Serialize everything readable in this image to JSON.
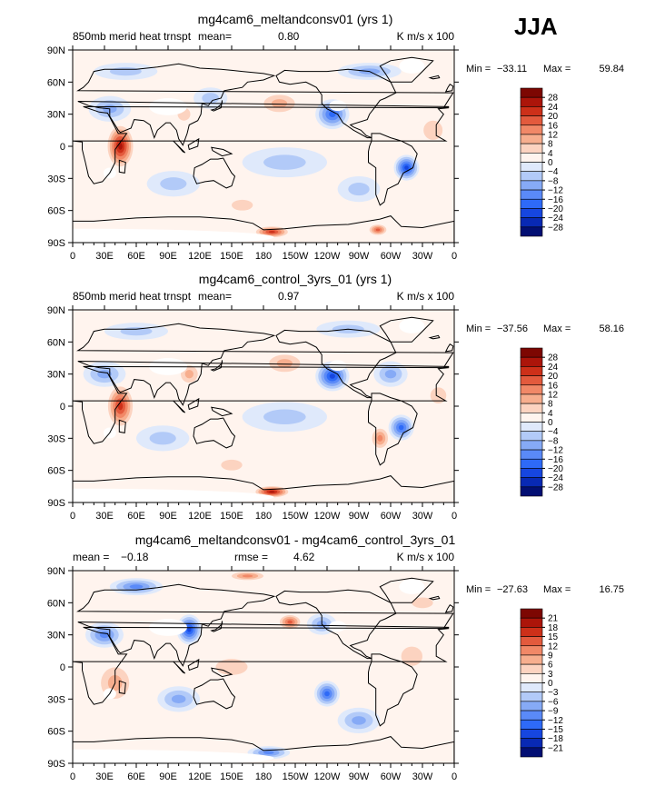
{
  "season": "JJA",
  "lon_ticks": [
    "0",
    "30E",
    "60E",
    "90E",
    "120E",
    "150E",
    "180",
    "150W",
    "120W",
    "90W",
    "60W",
    "30W",
    "0"
  ],
  "lat_ticks": [
    "90N",
    "60N",
    "30N",
    "0",
    "30S",
    "60S",
    "90S"
  ],
  "colors": {
    "standard": [
      "#020f73",
      "#0829b4",
      "#1646e0",
      "#2e6af7",
      "#5a8af8",
      "#86aaf6",
      "#b2caf8",
      "#dfe9fb",
      "#fff4ee",
      "#fcd3c0",
      "#f7ae8e",
      "#f18867",
      "#e35a3d",
      "#cd3019",
      "#ac150a",
      "#7d0702"
    ],
    "diff": [
      "#020f73",
      "#0829b4",
      "#1646e0",
      "#2e6af7",
      "#5a8af8",
      "#86aaf6",
      "#b2caf8",
      "#dfe9fb",
      "#fff4ee",
      "#fcd3c0",
      "#f7ae8e",
      "#f18867",
      "#e35a3d",
      "#cd3019",
      "#ac150a",
      "#7d0702"
    ]
  },
  "chart_data": [
    {
      "type": "heatmap",
      "title": "mg4cam6_meltandconsv01 (yrs 1)",
      "left_label": "850mb merid heat trnspt",
      "mean_label": "mean=",
      "mean_value": "0.80",
      "rmse_label": "",
      "rmse_value": "",
      "units": "K m/s x 100",
      "min_label": "Min =",
      "min_value": "−33.11",
      "max_label": "Max =",
      "max_value": "59.84",
      "colorbar_levels": [
        "28",
        "24",
        "20",
        "16",
        "12",
        "8",
        "4",
        "0",
        "−4",
        "−8",
        "−12",
        "−16",
        "−20",
        "−24",
        "−28"
      ],
      "contour_interval": 4,
      "xlim": [
        0,
        360
      ],
      "ylim": [
        -90,
        90
      ],
      "features": [
        {
          "lon": 45,
          "lat": 0,
          "value": 30,
          "rx": 14,
          "ry": 22
        },
        {
          "lon": 35,
          "lat": 35,
          "value": -14,
          "rx": 20,
          "ry": 12
        },
        {
          "lon": 245,
          "lat": 30,
          "value": -22,
          "rx": 16,
          "ry": 14
        },
        {
          "lon": 315,
          "lat": -20,
          "value": -24,
          "rx": 12,
          "ry": 12
        },
        {
          "lon": 188,
          "lat": -80,
          "value": 26,
          "rx": 18,
          "ry": 6
        },
        {
          "lon": 288,
          "lat": -78,
          "value": 22,
          "rx": 10,
          "ry": 6
        },
        {
          "lon": 195,
          "lat": 40,
          "value": 12,
          "rx": 22,
          "ry": 12
        },
        {
          "lon": 340,
          "lat": 15,
          "value": 10,
          "rx": 18,
          "ry": 18
        },
        {
          "lon": 105,
          "lat": 30,
          "value": 10,
          "rx": 12,
          "ry": 12
        },
        {
          "lon": 130,
          "lat": 45,
          "value": -10,
          "rx": 16,
          "ry": 10
        },
        {
          "lon": 200,
          "lat": -15,
          "value": -9,
          "rx": 40,
          "ry": 14
        },
        {
          "lon": 95,
          "lat": -35,
          "value": -8,
          "rx": 25,
          "ry": 12
        },
        {
          "lon": 160,
          "lat": -55,
          "value": 8,
          "rx": 20,
          "ry": 10
        },
        {
          "lon": 270,
          "lat": -40,
          "value": -9,
          "rx": 20,
          "ry": 12
        },
        {
          "lon": 280,
          "lat": 70,
          "value": -12,
          "rx": 30,
          "ry": 8
        },
        {
          "lon": 50,
          "lat": 70,
          "value": -10,
          "rx": 30,
          "ry": 8
        }
      ]
    },
    {
      "type": "heatmap",
      "title": "mg4cam6_control_3yrs_01 (yrs 1)",
      "left_label": "850mb merid heat trnspt",
      "mean_label": "mean=",
      "mean_value": "0.97",
      "rmse_label": "",
      "rmse_value": "",
      "units": "K m/s x 100",
      "min_label": "Min =",
      "min_value": "−37.56",
      "max_label": "Max =",
      "max_value": "58.16",
      "colorbar_levels": [
        "28",
        "24",
        "20",
        "16",
        "12",
        "8",
        "4",
        "0",
        "−4",
        "−8",
        "−12",
        "−16",
        "−20",
        "−24",
        "−28"
      ],
      "contour_interval": 4,
      "xlim": [
        0,
        360
      ],
      "ylim": [
        -90,
        90
      ],
      "features": [
        {
          "lon": 45,
          "lat": 0,
          "value": 26,
          "rx": 14,
          "ry": 22
        },
        {
          "lon": 30,
          "lat": 30,
          "value": -12,
          "rx": 20,
          "ry": 12
        },
        {
          "lon": 245,
          "lat": 28,
          "value": -24,
          "rx": 16,
          "ry": 14
        },
        {
          "lon": 310,
          "lat": -20,
          "value": -22,
          "rx": 12,
          "ry": 12
        },
        {
          "lon": 188,
          "lat": -80,
          "value": 28,
          "rx": 18,
          "ry": 6
        },
        {
          "lon": 290,
          "lat": -30,
          "value": 16,
          "rx": 10,
          "ry": 12
        },
        {
          "lon": 300,
          "lat": 30,
          "value": -14,
          "rx": 16,
          "ry": 12
        },
        {
          "lon": 200,
          "lat": 40,
          "value": 12,
          "rx": 22,
          "ry": 12
        },
        {
          "lon": 110,
          "lat": 30,
          "value": 12,
          "rx": 12,
          "ry": 12
        },
        {
          "lon": 200,
          "lat": -10,
          "value": -10,
          "rx": 40,
          "ry": 14
        },
        {
          "lon": 85,
          "lat": -30,
          "value": -9,
          "rx": 25,
          "ry": 12
        },
        {
          "lon": 150,
          "lat": -55,
          "value": 8,
          "rx": 20,
          "ry": 10
        },
        {
          "lon": 260,
          "lat": 72,
          "value": -10,
          "rx": 30,
          "ry": 8
        },
        {
          "lon": 60,
          "lat": 70,
          "value": -10,
          "rx": 30,
          "ry": 8
        },
        {
          "lon": 345,
          "lat": 10,
          "value": 10,
          "rx": 15,
          "ry": 15
        }
      ]
    },
    {
      "type": "heatmap",
      "title": "mg4cam6_meltandconsv01 - mg4cam6_control_3yrs_01",
      "left_label": "",
      "mean_label": "mean =",
      "mean_value": "−0.18",
      "rmse_label": "rmse =",
      "rmse_value": "4.62",
      "units": "K m/s x 100",
      "min_label": "Min =",
      "min_value": "−27.63",
      "max_label": "Max =",
      "max_value": "16.75",
      "colorbar_levels": [
        "21",
        "18",
        "15",
        "12",
        "9",
        "6",
        "3",
        "0",
        "−3",
        "−6",
        "−9",
        "−12",
        "−15",
        "−18",
        "−21"
      ],
      "contour_interval": 3,
      "xlim": [
        0,
        360
      ],
      "ylim": [
        -90,
        90
      ],
      "features": [
        {
          "lon": 110,
          "lat": 35,
          "value": -20,
          "rx": 12,
          "ry": 14
        },
        {
          "lon": 30,
          "lat": 30,
          "value": -14,
          "rx": 18,
          "ry": 12
        },
        {
          "lon": 205,
          "lat": 42,
          "value": 15,
          "rx": 12,
          "ry": 8
        },
        {
          "lon": 235,
          "lat": 40,
          "value": -9,
          "rx": 14,
          "ry": 10
        },
        {
          "lon": 165,
          "lat": 85,
          "value": 14,
          "rx": 20,
          "ry": 5
        },
        {
          "lon": 60,
          "lat": 75,
          "value": -12,
          "rx": 25,
          "ry": 8
        },
        {
          "lon": 240,
          "lat": -25,
          "value": -15,
          "rx": 12,
          "ry": 12
        },
        {
          "lon": 100,
          "lat": -30,
          "value": -10,
          "rx": 20,
          "ry": 12
        },
        {
          "lon": 185,
          "lat": -80,
          "value": -12,
          "rx": 20,
          "ry": 6
        },
        {
          "lon": 40,
          "lat": -15,
          "value": 10,
          "rx": 20,
          "ry": 22
        },
        {
          "lon": 320,
          "lat": 10,
          "value": 8,
          "rx": 20,
          "ry": 18
        },
        {
          "lon": 270,
          "lat": -50,
          "value": -9,
          "rx": 20,
          "ry": 12
        },
        {
          "lon": 150,
          "lat": 0,
          "value": 6,
          "rx": 30,
          "ry": 15
        },
        {
          "lon": 330,
          "lat": 60,
          "value": 8,
          "rx": 20,
          "ry": 10
        }
      ]
    }
  ]
}
